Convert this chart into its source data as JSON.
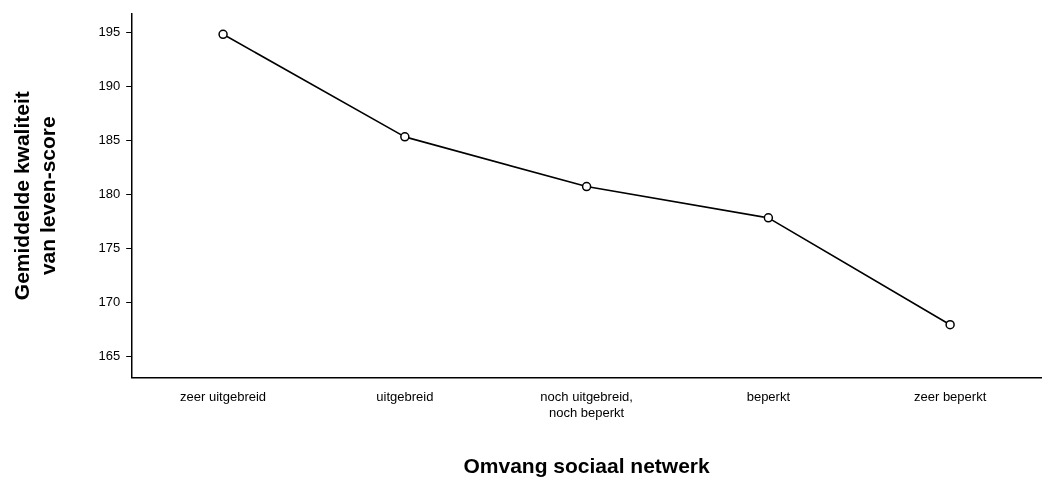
{
  "chart_data": {
    "type": "line",
    "categories": [
      "zeer uitgebreid",
      "uitgebreid",
      "noch uitgebreid, noch beperkt",
      "beperkt",
      "zeer beperkt"
    ],
    "series": [
      {
        "color": "#000000",
        "values": [
          194.8,
          185.3,
          180.7,
          177.8,
          167.9
        ]
      }
    ],
    "xlabel": "Omvang sociaal netwerk",
    "ylabel": "Gemiddelde kwaliteit van leven-score",
    "ylim": [
      163,
      196.7
    ],
    "yticks": [
      165,
      170,
      175,
      180,
      185,
      190,
      195
    ],
    "marker": "circle",
    "line_style": "solid",
    "legend": false
  }
}
